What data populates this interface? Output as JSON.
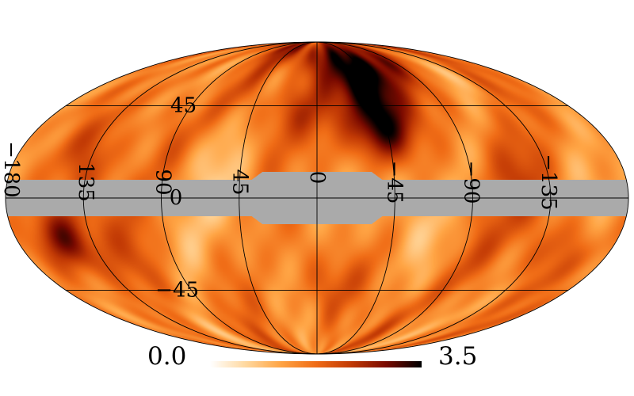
{
  "projection": "mollweide",
  "colormap": {
    "name": "heat",
    "stops": [
      "#ffffff",
      "#ffd9a0",
      "#ffa545",
      "#f06c16",
      "#c23a05",
      "#7a0a00",
      "#000000"
    ]
  },
  "colorbar": {
    "min_label": "0.0",
    "max_label": "3.5",
    "min": 0.0,
    "max": 3.5
  },
  "mask_color": "#aaaaaa",
  "graticule": {
    "longitudes": [
      -135,
      -90,
      -45,
      0,
      45,
      90,
      135,
      180
    ],
    "latitudes": [
      -45,
      0,
      45
    ],
    "meridian_labels": [
      {
        "lon": 180,
        "text": "−180"
      },
      {
        "lon": 135,
        "text": "135"
      },
      {
        "lon": 90,
        "text": "90"
      },
      {
        "lon": 45,
        "text": "45"
      },
      {
        "lon": 0,
        "text": "0"
      },
      {
        "lon": -45,
        "text": "−45"
      },
      {
        "lon": -90,
        "text": "−90"
      },
      {
        "lon": -135,
        "text": "−135"
      }
    ],
    "parallel_labels": [
      {
        "lat": 45,
        "text": "45"
      },
      {
        "lat": 0,
        "text": "0"
      },
      {
        "lat": -45,
        "text": "−45"
      }
    ]
  },
  "hotspots": [
    {
      "lon": -40,
      "lat": 30,
      "value": 3.4
    },
    {
      "lon": -35,
      "lat": 60,
      "value": 3.0
    },
    {
      "lon": -45,
      "lat": 45,
      "value": 2.6
    },
    {
      "lon": -60,
      "lat": 70,
      "value": 2.4
    },
    {
      "lon": 150,
      "lat": -20,
      "value": 3.1
    },
    {
      "lon": 135,
      "lat": 20,
      "value": 1.9
    },
    {
      "lon": 20,
      "lat": 42,
      "value": 2.2
    },
    {
      "lon": -10,
      "lat": 42,
      "value": 1.9
    },
    {
      "lon": -15,
      "lat": -40,
      "value": 2.0
    },
    {
      "lon": -150,
      "lat": -25,
      "value": 2.1
    },
    {
      "lon": -105,
      "lat": 10,
      "value": 1.8
    },
    {
      "lon": 90,
      "lat": 35,
      "value": 1.7
    },
    {
      "lon": 10,
      "lat": 78,
      "value": 2.3
    }
  ]
}
